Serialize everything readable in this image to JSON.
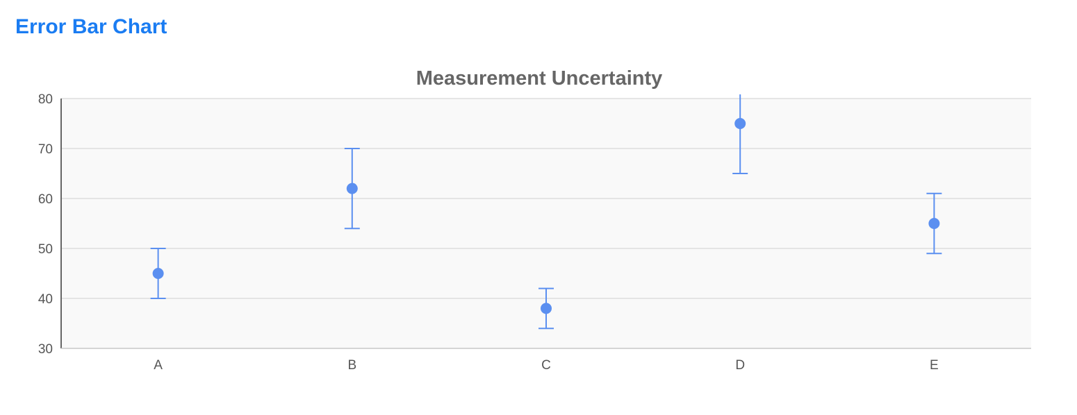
{
  "page": {
    "heading": "Error Bar Chart"
  },
  "colors": {
    "heading": "#1a7cf2",
    "series": "#5b8ff0",
    "plot_background": "#f9f9f9",
    "grid": "#dddddd",
    "axis": "#666666",
    "text": "#555555"
  },
  "chart_data": {
    "type": "scatter",
    "subtype": "error-bar",
    "title": "Measurement Uncertainty",
    "xlabel": "",
    "ylabel": "",
    "categories": [
      "A",
      "B",
      "C",
      "D",
      "E"
    ],
    "values": [
      45,
      62,
      38,
      75,
      55
    ],
    "error_low": [
      40,
      54,
      34,
      65,
      49
    ],
    "error_high": [
      50,
      70,
      42,
      85,
      61
    ],
    "ylim": [
      30,
      80
    ],
    "yticks": [
      30,
      40,
      50,
      60,
      70,
      80
    ],
    "grid": true,
    "legend": false
  }
}
